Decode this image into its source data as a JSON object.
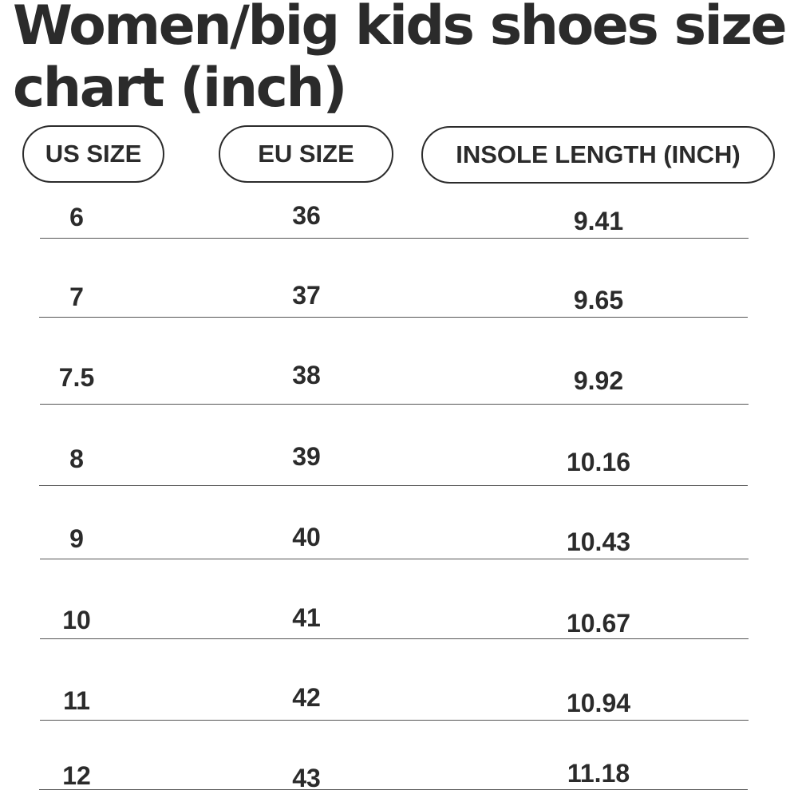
{
  "title": "Women/big kids shoes size chart (inch)",
  "columns": {
    "us": "US SIZE",
    "eu": "EU SIZE",
    "insole": "INSOLE LENGTH (INCH)"
  },
  "rows": [
    {
      "us": "6",
      "eu": "36",
      "insole": "9.41"
    },
    {
      "us": "7",
      "eu": "37",
      "insole": "9.65"
    },
    {
      "us": "7.5",
      "eu": "38",
      "insole": "9.92"
    },
    {
      "us": "8",
      "eu": "39",
      "insole": "10.16"
    },
    {
      "us": "9",
      "eu": "40",
      "insole": "10.43"
    },
    {
      "us": "10",
      "eu": "41",
      "insole": "10.67"
    },
    {
      "us": "11",
      "eu": "42",
      "insole": "10.94"
    },
    {
      "us": "12",
      "eu": "43",
      "insole": "11.18"
    }
  ],
  "colors": {
    "text": "#2b2b2b",
    "rule": "#555555",
    "background": "#ffffff"
  }
}
